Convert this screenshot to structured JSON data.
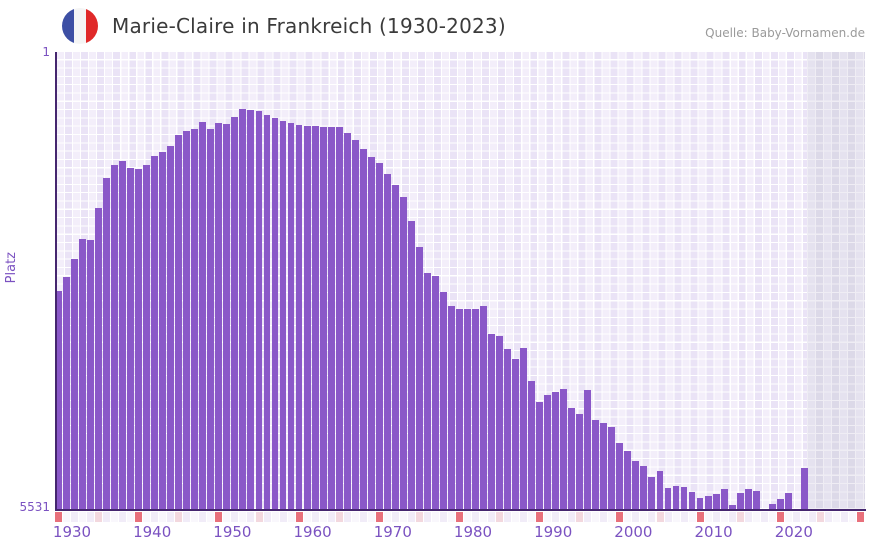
{
  "header": {
    "title": "Marie-Claire in Frankreich (1930-2023)",
    "source": "Quelle: Baby-Vornamen.de",
    "flag_icon": "france-flag-icon"
  },
  "chart_data": {
    "type": "bar",
    "title": "Marie-Claire in Frankreich (1930-2023)",
    "xlabel": "",
    "ylabel": "Platz",
    "y_axis": {
      "top_label": "1",
      "bottom_label": "5531",
      "min": 1,
      "max": 5531,
      "inverted": true
    },
    "x_tick_labels": [
      "1930",
      "1940",
      "1950",
      "1960",
      "1970",
      "1980",
      "1990",
      "2000",
      "2010",
      "2020"
    ],
    "start_year": 1930,
    "end_year": 2023,
    "ranks": [
      2890,
      2720,
      2500,
      2260,
      2280,
      1890,
      1520,
      1370,
      1320,
      1410,
      1420,
      1370,
      1260,
      1210,
      1140,
      1000,
      960,
      935,
      850,
      935,
      860,
      875,
      790,
      690,
      705,
      715,
      765,
      800,
      840,
      860,
      885,
      900,
      900,
      910,
      910,
      910,
      985,
      1070,
      1175,
      1275,
      1350,
      1480,
      1615,
      1760,
      2040,
      2355,
      2680,
      2715,
      2910,
      3070,
      3115,
      3105,
      3115,
      3080,
      3410,
      3435,
      3590,
      3710,
      3580,
      3980,
      4235,
      4150,
      4110,
      4075,
      4305,
      4380,
      4085,
      4450,
      4490,
      4540,
      4730,
      4830,
      4950,
      5010,
      5145,
      5070,
      5275,
      5250,
      5265,
      5325,
      5395,
      5375,
      5350,
      5290,
      5480,
      5335,
      5290,
      5315,
      null,
      5470,
      5410,
      5335,
      null,
      5035
    ],
    "missing_years": [
      2018,
      2022
    ],
    "tick_strip": {
      "start_year": 1930,
      "end_year": 2030,
      "decade_color": "#e8707b",
      "half_decade_color": "#f3d8de",
      "cell_color_a": "#f1ecf8",
      "cell_color_b": "#f9f7fc"
    },
    "legend": "none",
    "grid": "on",
    "colors": {
      "bar": "#8a58c8",
      "axis_line": "#45266f",
      "axis_label": "#7b52c1",
      "title_text": "#3b3b3b",
      "source_text": "#9a9a9a",
      "grid_cell_light": "#f3eefa",
      "grid_cell_dark": "#eae3f6",
      "future_band_light": "#e5e2ef",
      "future_band_dark": "#dcd9e8",
      "flag_blue": "#3d4fa4",
      "flag_white": "#f5f5f5",
      "flag_red": "#e02929"
    }
  }
}
